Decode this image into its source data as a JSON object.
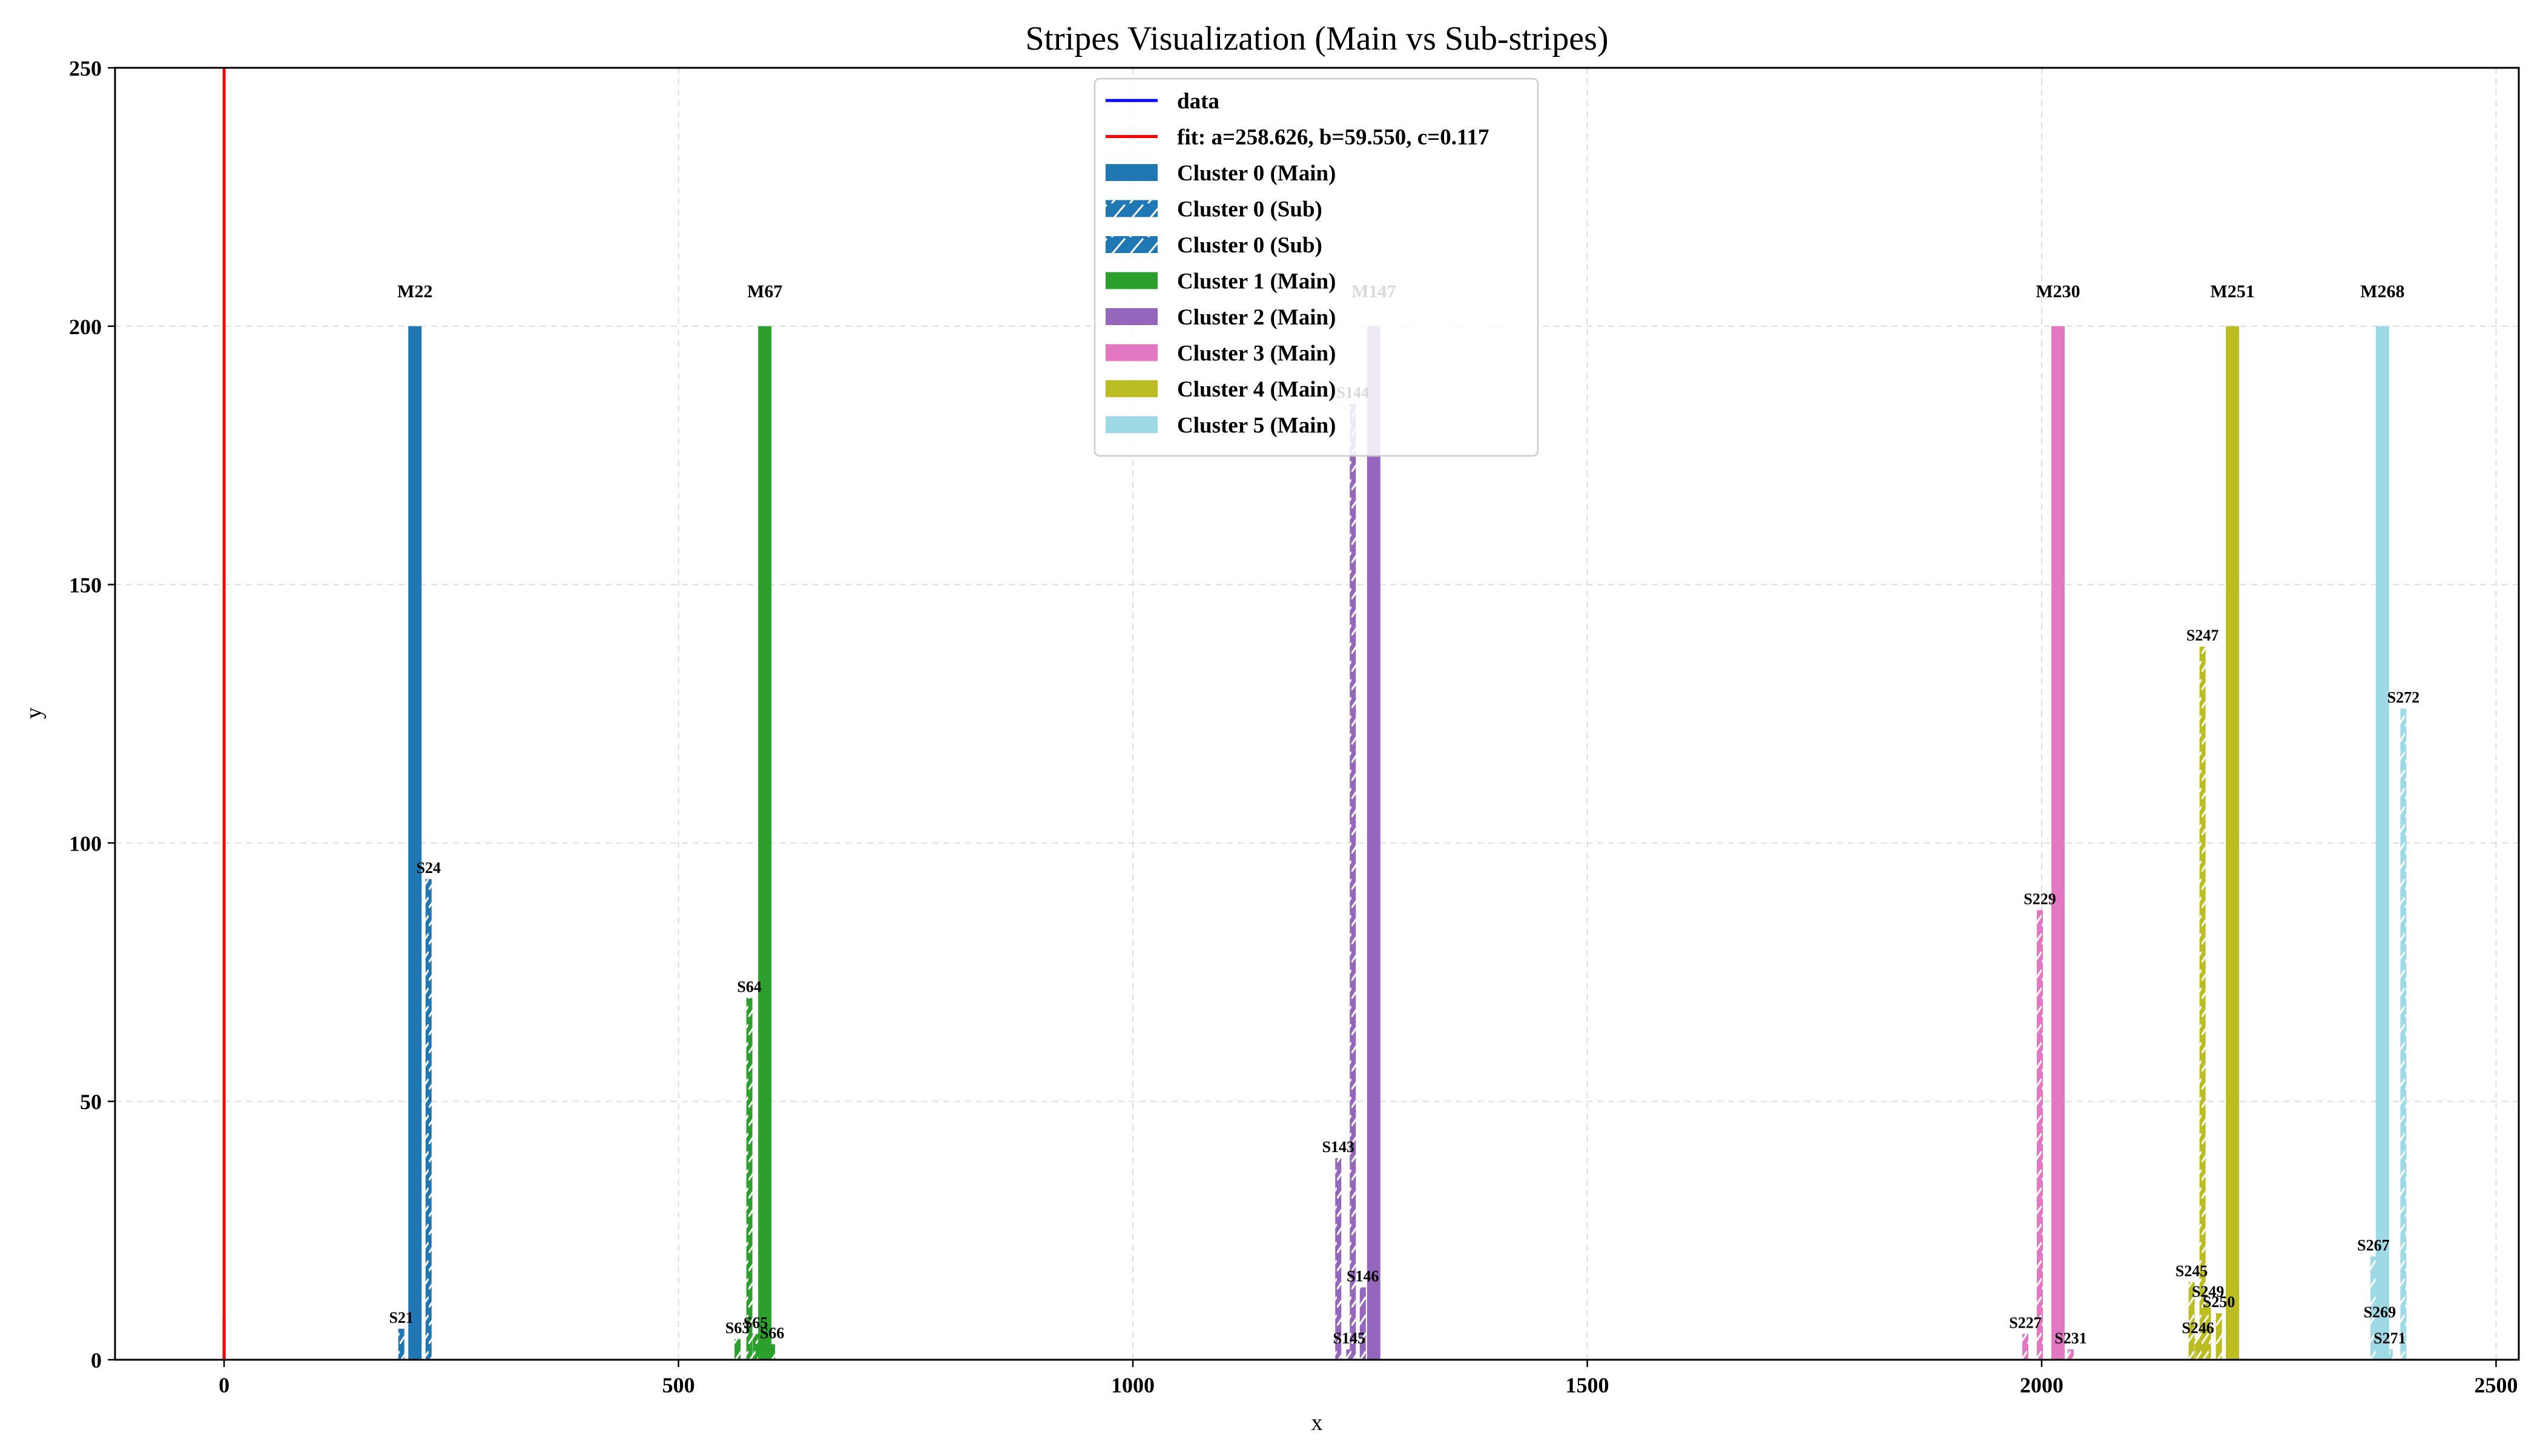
{
  "chart_data": {
    "type": "bar",
    "title": "Stripes Visualization (Main vs Sub-stripes)",
    "xlabel": "x",
    "ylabel": "y",
    "xlim": [
      -120,
      2525
    ],
    "ylim": [
      0,
      250
    ],
    "xticks": [
      0,
      500,
      1000,
      1500,
      2000,
      2500
    ],
    "yticks": [
      0,
      50,
      100,
      150,
      200,
      250
    ],
    "grid": true,
    "legend_position": "top-center",
    "lines": [
      {
        "name": "data",
        "color": "#0000ff",
        "points": [
          [
            0,
            0
          ],
          [
            0,
            8.5
          ]
        ]
      },
      {
        "name": "fit: a=258.626, b=59.550, c=0.117",
        "color": "#ff0000",
        "points": [
          [
            0,
            0
          ],
          [
            0,
            250
          ]
        ]
      }
    ],
    "legend": [
      {
        "label": "data",
        "kind": "line",
        "color": "#0000ff"
      },
      {
        "label": "fit: a=258.626, b=59.550, c=0.117",
        "kind": "line",
        "color": "#ff0000"
      },
      {
        "label": "Cluster 0 (Main)",
        "kind": "bar",
        "color": "#1f77b4"
      },
      {
        "label": "Cluster 0 (Sub)",
        "kind": "hatch",
        "color": "#1f77b4"
      },
      {
        "label": "Cluster 0 (Sub)",
        "kind": "hatch",
        "color": "#1f77b4"
      },
      {
        "label": "Cluster 1 (Main)",
        "kind": "bar",
        "color": "#2ca02c"
      },
      {
        "label": "Cluster 2 (Main)",
        "kind": "bar",
        "color": "#9467bd"
      },
      {
        "label": "Cluster 3 (Main)",
        "kind": "bar",
        "color": "#e377c2"
      },
      {
        "label": "Cluster 4 (Main)",
        "kind": "bar",
        "color": "#bcbd22"
      },
      {
        "label": "Cluster 5 (Main)",
        "kind": "bar",
        "color": "#9edae5"
      }
    ],
    "clusters": [
      {
        "name": "Cluster 0",
        "color": "#1f77b4",
        "main": {
          "label": "M22",
          "x": 210,
          "value": 200
        },
        "subs": [
          {
            "label": "S21",
            "x": 195,
            "value": 6
          },
          {
            "label": "S24",
            "x": 225,
            "value": 93
          }
        ]
      },
      {
        "name": "Cluster 1",
        "color": "#2ca02c",
        "main": {
          "label": "M67",
          "x": 595,
          "value": 200
        },
        "subs": [
          {
            "label": "S63",
            "x": 565,
            "value": 4
          },
          {
            "label": "S64",
            "x": 578,
            "value": 70
          },
          {
            "label": "S65",
            "x": 585,
            "value": 5
          },
          {
            "label": "S66",
            "x": 603,
            "value": 3
          }
        ]
      },
      {
        "name": "Cluster 2",
        "color": "#9467bd",
        "main": {
          "label": "M147",
          "x": 1265,
          "value": 200
        },
        "subs": [
          {
            "label": "S143",
            "x": 1226,
            "value": 39
          },
          {
            "label": "S144",
            "x": 1242,
            "value": 185
          },
          {
            "label": "S145",
            "x": 1238,
            "value": 2
          },
          {
            "label": "S146",
            "x": 1253,
            "value": 14
          }
        ]
      },
      {
        "name": "Cluster 3",
        "color": "#e377c2",
        "main": {
          "label": "M230",
          "x": 2018,
          "value": 200
        },
        "subs": [
          {
            "label": "S227",
            "x": 1982,
            "value": 5
          },
          {
            "label": "S229",
            "x": 1998,
            "value": 87
          },
          {
            "label": "S231",
            "x": 2032,
            "value": 2
          }
        ]
      },
      {
        "name": "Cluster 4",
        "color": "#bcbd22",
        "main": {
          "label": "M251",
          "x": 2210,
          "value": 200
        },
        "subs": [
          {
            "label": "S245",
            "x": 2165,
            "value": 15
          },
          {
            "label": "S246",
            "x": 2172,
            "value": 4
          },
          {
            "label": "S247",
            "x": 2177,
            "value": 138
          },
          {
            "label": "S249",
            "x": 2183,
            "value": 11
          },
          {
            "label": "S250",
            "x": 2195,
            "value": 9
          }
        ]
      },
      {
        "name": "Cluster 5",
        "color": "#9edae5",
        "main": {
          "label": "M268",
          "x": 2375,
          "value": 200
        },
        "subs": [
          {
            "label": "S267",
            "x": 2365,
            "value": 20
          },
          {
            "label": "S269",
            "x": 2372,
            "value": 7
          },
          {
            "label": "S271",
            "x": 2383,
            "value": 2
          },
          {
            "label": "S272",
            "x": 2398,
            "value": 126
          }
        ]
      }
    ]
  }
}
